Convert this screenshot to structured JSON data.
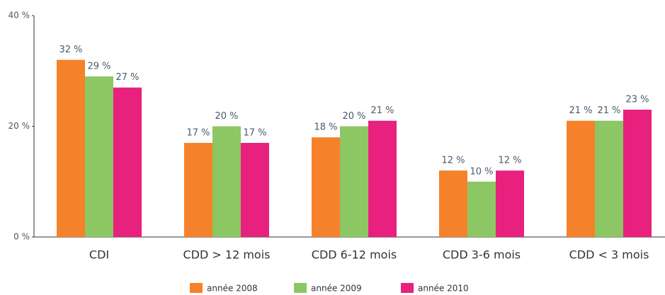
{
  "chart_data": {
    "type": "bar",
    "categories": [
      "CDI",
      "CDD > 12 mois",
      "CDD 6-12 mois",
      "CDD 3-6 mois",
      "CDD < 3 mois"
    ],
    "series": [
      {
        "name": "année 2008",
        "color": "#f5822a",
        "values": [
          32,
          17,
          18,
          12,
          21
        ],
        "value_labels": [
          "32 %",
          "17 %",
          "18 %",
          "12 %",
          "21 %"
        ]
      },
      {
        "name": "année 2009",
        "color": "#8cc763",
        "values": [
          29,
          20,
          20,
          10,
          21
        ],
        "value_labels": [
          "29 %",
          "20 %",
          "20 %",
          "10 %",
          "21 %"
        ]
      },
      {
        "name": "année 2010",
        "color": "#e8207e",
        "values": [
          27,
          17,
          21,
          12,
          23
        ],
        "value_labels": [
          "27 %",
          "17 %",
          "21 %",
          "12 %",
          "23 %"
        ]
      }
    ],
    "ylim": [
      0,
      40
    ],
    "yticks": [
      {
        "value": 0,
        "label": "0 %"
      },
      {
        "value": 20,
        "label": "20 %"
      },
      {
        "value": 40,
        "label": "40 %"
      }
    ],
    "grid": false
  }
}
